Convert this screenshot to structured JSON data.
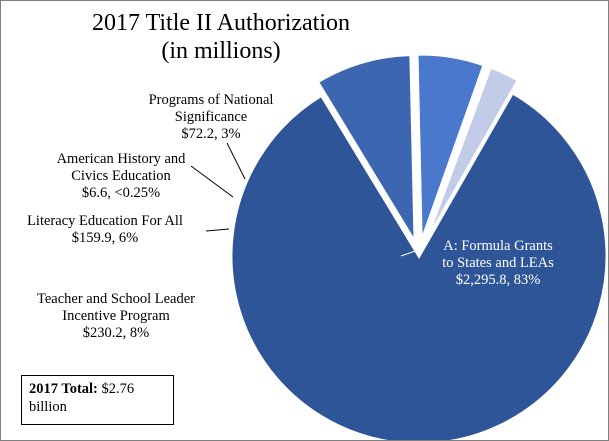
{
  "title_line1": "2017 Title II Authorization",
  "title_line2": "(in millions)",
  "colors": {
    "slice_A": "#2e5597",
    "slice_teacher": "#3d66b0",
    "slice_literacy": "#4a78cc",
    "slice_history": "#8fa3d8",
    "slice_national": "#c2cbe8",
    "leader_line": "#000000"
  },
  "chart_data": {
    "type": "pie",
    "title": "2017 Title II Authorization (in millions)",
    "slices": [
      {
        "label_lines": [
          "A: Formula Grants",
          "to States and LEAs",
          "$2,295.8, 83%"
        ],
        "value": 2295.8,
        "percent": "83%",
        "exploded": false
      },
      {
        "label_lines": [
          "Teacher and School Leader",
          "Incentive Program",
          "$230.2, 8%"
        ],
        "value": 230.2,
        "percent": "8%",
        "exploded": true
      },
      {
        "label_lines": [
          "Literacy Education For All",
          "$159.9, 6%"
        ],
        "value": 159.9,
        "percent": "6%",
        "exploded": true
      },
      {
        "label_lines": [
          "American History and",
          "Civics Education",
          "$6.6, <0.25%"
        ],
        "value": 6.6,
        "percent": "<0.25%",
        "exploded": true
      },
      {
        "label_lines": [
          "Programs of National",
          "Significance",
          "$72.2, 3%"
        ],
        "value": 72.2,
        "percent": "3%",
        "exploded": true
      }
    ]
  },
  "total_box": {
    "label": "2017 Total:",
    "value": "$2.76",
    "unit": "billion"
  }
}
